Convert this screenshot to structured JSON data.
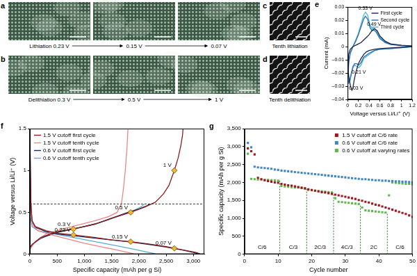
{
  "micrographs": [
    {
      "panel": "a",
      "labels": [
        "Lithiation 0.23 V",
        "0.15 V",
        "0.07 V"
      ]
    },
    {
      "panel": "b",
      "labels": [
        "Delithiation 0.3 V",
        "0.5 V",
        "1 V"
      ]
    },
    {
      "panel": "c",
      "labels": [
        "Tenth lithiation"
      ]
    },
    {
      "panel": "d",
      "labels": [
        "Tenth delithiation"
      ]
    }
  ],
  "chart_data": [
    {
      "type": "line",
      "panel": "e",
      "x_label": "Voltage versus Li/Li⁺ (V)",
      "y_label": "Current (mA)",
      "xlim": [
        0,
        1.2
      ],
      "xticks": [
        0,
        0.2,
        0.4,
        0.6,
        0.8,
        1,
        1.2
      ],
      "ylim": [
        -0.04,
        0.03
      ],
      "yticks": [
        {
          "value": -0.04,
          "label": "–0.04"
        },
        {
          "value": -0.03,
          "label": "–0.03"
        },
        {
          "value": -0.02,
          "label": "–0.02"
        },
        {
          "value": -0.01,
          "label": "–0.01"
        },
        0,
        0.01,
        0.02,
        0.03
      ],
      "grid": false,
      "legend": "upper right",
      "series": [
        {
          "name": "First cycle",
          "color": "#1b2747",
          "line_style": "solid",
          "x": [
            1.2,
            1.0,
            0.8,
            0.6,
            0.5,
            0.4,
            0.35,
            0.3,
            0.25,
            0.2,
            0.15,
            0.12,
            0.1,
            0.08,
            0.06,
            0.04,
            0.02,
            0.01,
            0.02,
            0.05,
            0.1,
            0.15,
            0.2,
            0.25,
            0.3,
            0.35,
            0.4,
            0.45,
            0.5,
            0.55,
            0.6,
            0.7,
            0.8,
            1.0,
            1.2
          ],
          "values": [
            0,
            -0.0005,
            -0.001,
            -0.0015,
            -0.002,
            -0.003,
            -0.004,
            -0.006,
            -0.009,
            -0.013,
            -0.02,
            -0.026,
            -0.031,
            -0.033,
            -0.031,
            -0.027,
            -0.022,
            -0.018,
            -0.006,
            -0.002,
            0,
            0.001,
            0.002,
            0.003,
            0.005,
            0.007,
            0.009,
            0.012,
            0.0135,
            0.012,
            0.008,
            0.004,
            0.002,
            0.001,
            0.0005
          ]
        },
        {
          "name": "Second cycle",
          "color": "#2a6db0",
          "line_style": "solid",
          "x": [
            1.2,
            1.0,
            0.8,
            0.6,
            0.5,
            0.4,
            0.3,
            0.25,
            0.21,
            0.17,
            0.13,
            0.1,
            0.07,
            0.04,
            0.02,
            0.01,
            0.02,
            0.05,
            0.1,
            0.15,
            0.2,
            0.25,
            0.3,
            0.33,
            0.37,
            0.42,
            0.46,
            0.49,
            0.53,
            0.6,
            0.7,
            0.8,
            1.0,
            1.2
          ],
          "values": [
            0,
            -0.0008,
            -0.0015,
            -0.002,
            -0.003,
            -0.005,
            -0.008,
            -0.012,
            -0.014,
            -0.013,
            -0.013,
            -0.015,
            -0.02,
            -0.026,
            -0.027,
            -0.025,
            -0.012,
            -0.005,
            0,
            0.004,
            0.009,
            0.015,
            0.021,
            0.023,
            0.021,
            0.014,
            0.012,
            0.0125,
            0.011,
            0.006,
            0.003,
            0.0015,
            0.0008,
            0.0003
          ]
        },
        {
          "name": "Third cycle",
          "color": "#4db6dc",
          "line_style": "solid",
          "x": [
            1.2,
            1.0,
            0.8,
            0.6,
            0.5,
            0.4,
            0.3,
            0.25,
            0.21,
            0.17,
            0.13,
            0.1,
            0.07,
            0.04,
            0.02,
            0.01,
            0.02,
            0.05,
            0.1,
            0.15,
            0.2,
            0.25,
            0.3,
            0.33,
            0.37,
            0.42,
            0.46,
            0.49,
            0.53,
            0.6,
            0.7,
            0.8,
            1.0,
            1.2
          ],
          "values": [
            0,
            -0.0008,
            -0.0015,
            -0.002,
            -0.003,
            -0.006,
            -0.009,
            -0.014,
            -0.016,
            -0.015,
            -0.014,
            -0.016,
            -0.021,
            -0.027,
            -0.028,
            -0.026,
            -0.013,
            -0.005,
            0,
            0.005,
            0.01,
            0.017,
            0.024,
            0.026,
            0.024,
            0.016,
            0.0135,
            0.014,
            0.012,
            0.007,
            0.0035,
            0.0018,
            0.0009,
            0.0003
          ]
        }
      ],
      "annotations": [
        {
          "text": "0.33 V",
          "x": 0.33,
          "y": 0.026
        },
        {
          "text": "0.49 V",
          "x": 0.49,
          "y": 0.014
        },
        {
          "text": "0.03 V",
          "x": 0.03,
          "y": -0.028
        },
        {
          "text": "0.21 V",
          "x": 0.21,
          "y": -0.016
        }
      ]
    },
    {
      "type": "line",
      "panel": "f",
      "x_label": "Specific capacity (mAh per g Si)",
      "y_label": "Voltage versus Li/Li⁺ (V)",
      "xlim": [
        0,
        3200
      ],
      "xticks": [
        0,
        500,
        {
          "value": 1000,
          "label": "1,000"
        },
        {
          "value": 1500,
          "label": "1,500"
        },
        {
          "value": 2000,
          "label": "2,000"
        },
        {
          "value": 2500,
          "label": "2,500"
        },
        {
          "value": 3000,
          "label": "3,000"
        }
      ],
      "ylim": [
        0,
        1.5
      ],
      "yticks": [
        0,
        0.5,
        1,
        1.5
      ],
      "grid": false,
      "legend": "upper left",
      "hline": 0.6,
      "series": [
        {
          "name": "1.5 V cutoff first cycle",
          "color": "#8c1d1d",
          "line_style": "solid",
          "x": [
            0,
            10,
            20,
            40,
            100,
            300,
            500,
            800,
            1200,
            1500,
            1850,
            2200,
            2500,
            2650,
            2900,
            3050,
            3120,
            null,
            0,
            50,
            200,
            500,
            800,
            1200,
            1500,
            1850,
            2100,
            2300,
            2450,
            2550,
            2650,
            2720,
            2770,
            2800,
            2810
          ],
          "values": [
            1.5,
            1.0,
            0.6,
            0.4,
            0.33,
            0.28,
            0.25,
            0.23,
            0.2,
            0.17,
            0.15,
            0.12,
            0.09,
            0.07,
            0.04,
            0.02,
            0.005,
            null,
            0.08,
            0.12,
            0.2,
            0.27,
            0.3,
            0.36,
            0.43,
            0.5,
            0.56,
            0.62,
            0.72,
            0.82,
            1.0,
            1.15,
            1.3,
            1.42,
            1.5
          ]
        },
        {
          "name": "1.5 V cutoff tenth cycle",
          "color": "#ef8484",
          "line_style": "solid",
          "x": [
            0,
            10,
            20,
            50,
            150,
            400,
            700,
            1000,
            1300,
            1600,
            1800,
            1900,
            null,
            0,
            100,
            300,
            600,
            900,
            1200,
            1450,
            1600,
            1680,
            1720,
            1750,
            1780,
            1800
          ],
          "values": [
            1.5,
            0.9,
            0.5,
            0.35,
            0.28,
            0.23,
            0.18,
            0.13,
            0.09,
            0.05,
            0.02,
            0.005,
            null,
            0.06,
            0.15,
            0.24,
            0.3,
            0.35,
            0.4,
            0.45,
            0.5,
            0.6,
            0.8,
            1.0,
            1.25,
            1.5
          ]
        },
        {
          "name": "0.6 V cutoff first cycle",
          "color": "#1c2a5c",
          "line_style": "solid",
          "x": [
            0,
            10,
            20,
            40,
            100,
            300,
            500,
            800,
            1200,
            1500,
            1850,
            2200,
            2500,
            2800,
            3000,
            3080,
            null,
            0,
            50,
            200,
            500,
            800,
            1200,
            1500,
            1800,
            2000,
            2150,
            2200
          ],
          "values": [
            1.5,
            1.0,
            0.6,
            0.4,
            0.32,
            0.27,
            0.24,
            0.22,
            0.19,
            0.17,
            0.145,
            0.115,
            0.085,
            0.05,
            0.02,
            0.005,
            null,
            0.08,
            0.12,
            0.19,
            0.26,
            0.3,
            0.36,
            0.43,
            0.5,
            0.54,
            0.58,
            0.6
          ]
        },
        {
          "name": "0.6 V cutoff tenth cycle",
          "color": "#5fa8d6",
          "line_style": "solid",
          "x": [
            0,
            10,
            40,
            150,
            400,
            800,
            1200,
            1600,
            1900,
            2150,
            2300,
            null,
            0,
            100,
            300,
            600,
            1000,
            1400,
            1700,
            1900,
            2050,
            2100
          ],
          "values": [
            0.6,
            0.45,
            0.33,
            0.28,
            0.25,
            0.2,
            0.15,
            0.1,
            0.06,
            0.025,
            0.005,
            null,
            0.06,
            0.15,
            0.22,
            0.28,
            0.33,
            0.4,
            0.47,
            0.52,
            0.57,
            0.6
          ]
        }
      ],
      "markers": {
        "color": "#f3b632",
        "marker": "diamond",
        "points": [
          {
            "label": "1 V",
            "x": 2650,
            "y": 1.0
          },
          {
            "label": "0.5 V",
            "x": 1850,
            "y": 0.5
          },
          {
            "label": "0.3 V",
            "x": 800,
            "y": 0.3
          },
          {
            "label": "0.23 V",
            "x": 800,
            "y": 0.23
          },
          {
            "label": "0.15 V",
            "x": 1850,
            "y": 0.15
          },
          {
            "label": "0.07 V",
            "x": 2650,
            "y": 0.07
          }
        ]
      }
    },
    {
      "type": "scatter",
      "panel": "g",
      "x_label": "Cycle number",
      "y_label": "Specific capacity (mAh per g Si)",
      "xlim": [
        0,
        50
      ],
      "xticks": [
        0,
        10,
        20,
        30,
        40,
        50
      ],
      "ylim": [
        0,
        3500
      ],
      "yticks": [
        0,
        500,
        {
          "value": 1000,
          "label": "1,000"
        },
        {
          "value": 1500,
          "label": "1,500"
        },
        {
          "value": 2000,
          "label": "2,000"
        },
        {
          "value": 2500,
          "label": "2,500"
        },
        {
          "value": 3000,
          "label": "3,000"
        },
        {
          "value": 3500,
          "label": "3,500"
        }
      ],
      "grid": false,
      "legend": "upper right",
      "x": [
        1,
        2,
        3,
        4,
        5,
        6,
        7,
        8,
        9,
        10,
        11,
        12,
        13,
        14,
        15,
        16,
        17,
        18,
        19,
        20,
        21,
        22,
        23,
        24,
        25,
        26,
        27,
        28,
        29,
        30,
        31,
        32,
        33,
        34,
        35,
        36,
        37,
        38,
        39,
        40,
        41,
        42,
        43,
        44,
        45,
        46,
        47,
        48,
        49,
        50
      ],
      "series": [
        {
          "name": "1.5 V cutoff at C/6 rate",
          "color": "#a3141c",
          "marker": "square",
          "line_style": "none",
          "values": [
            2950,
            2870,
            2780,
            2130,
            2090,
            2060,
            2040,
            2020,
            2000,
            1990,
            1960,
            1940,
            1920,
            1910,
            1890,
            1870,
            1850,
            1830,
            1810,
            1790,
            1770,
            1750,
            1730,
            1720,
            1700,
            1680,
            1660,
            1640,
            1620,
            1600,
            1580,
            1560,
            1540,
            1510,
            1490,
            1460,
            1440,
            1410,
            1380,
            1360,
            1330,
            1300,
            1270,
            1240,
            1210,
            1180,
            1150,
            1120,
            1080,
            1040
          ]
        },
        {
          "name": "0.6 V cutoff at C/6 rate",
          "color": "#3f86c9",
          "marker": "square",
          "line_style": "none",
          "values": [
            3100,
            2980,
            2440,
            2420,
            2410,
            2400,
            2390,
            2380,
            2360,
            2350,
            2330,
            2320,
            2310,
            2300,
            2290,
            2280,
            2270,
            2260,
            2250,
            2240,
            2230,
            2220,
            2210,
            2200,
            2190,
            2180,
            2170,
            2160,
            2150,
            2140,
            2130,
            2120,
            2110,
            2100,
            2090,
            2090,
            2080,
            2070,
            2060,
            2060,
            2050,
            2050,
            2040,
            2040,
            2030,
            2030,
            2020,
            2020,
            2010,
            2000
          ]
        },
        {
          "name": "0.6 V cutoff at varying rates",
          "color": "#5cb847",
          "marker": "square",
          "line_style": "none",
          "values": [
            2800,
            2100,
            2090,
            2080,
            2080,
            2070,
            2070,
            2060,
            2060,
            2050,
            1900,
            1890,
            1880,
            1870,
            1860,
            1860,
            1850,
            1840,
            1790,
            1780,
            1770,
            1760,
            1750,
            1740,
            1730,
            1720,
            1560,
            1460,
            1450,
            1440,
            1430,
            1420,
            1410,
            1400,
            1300,
            1220,
            1210,
            1200,
            1190,
            1180,
            1170,
            1160,
            1640,
            2000,
            1990,
            1980,
            1970,
            1960,
            1960,
            1950
          ]
        }
      ],
      "segments": [
        {
          "label": "C/6",
          "from": 0,
          "to": 10.5
        },
        {
          "label": "C/3",
          "from": 10.5,
          "to": 18.5
        },
        {
          "label": "2C/3",
          "from": 18.5,
          "to": 26.5
        },
        {
          "label": "4C/3",
          "from": 26.5,
          "to": 34.5
        },
        {
          "label": "2C",
          "from": 34.5,
          "to": 42.5
        },
        {
          "label": "C/6",
          "from": 42.5,
          "to": 50
        }
      ]
    }
  ]
}
